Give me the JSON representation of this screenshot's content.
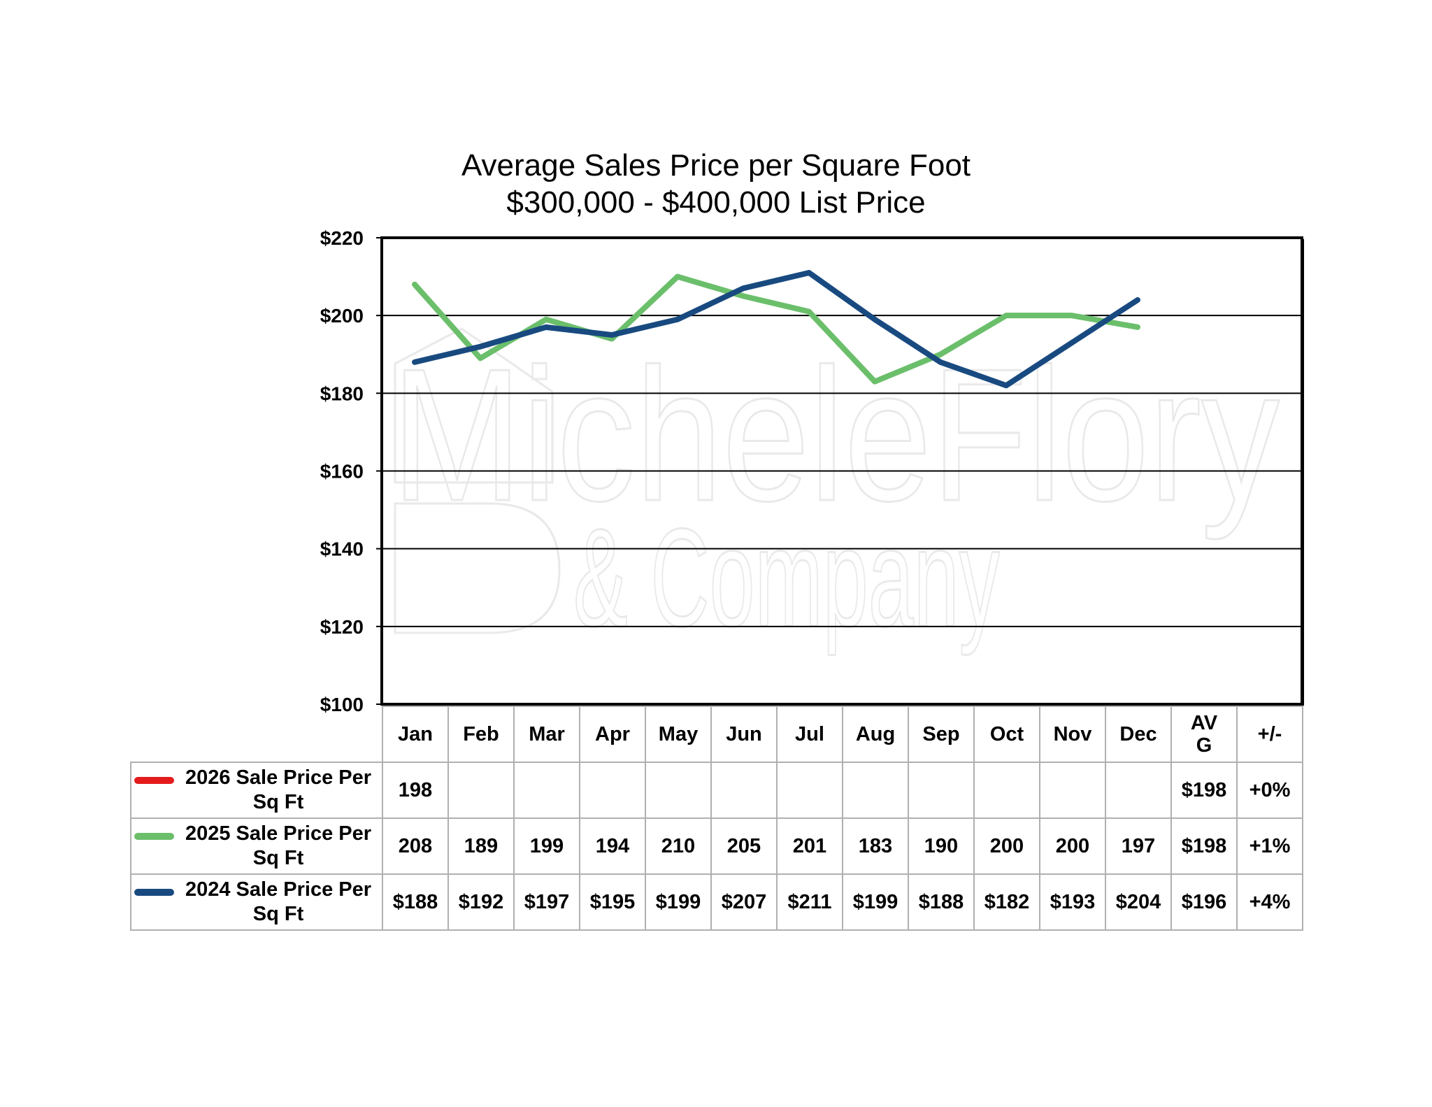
{
  "chart_data": {
    "type": "line",
    "title": "Average Sales Price per Square Foot",
    "subtitle": "$300,000 - $400,000 List Price",
    "categories": [
      "Jan",
      "Feb",
      "Mar",
      "Apr",
      "May",
      "Jun",
      "Jul",
      "Aug",
      "Sep",
      "Oct",
      "Nov",
      "Dec"
    ],
    "ylim": [
      100,
      220
    ],
    "yticks": [
      100,
      120,
      140,
      160,
      180,
      200,
      220
    ],
    "ytick_labels": [
      "$100",
      "$120",
      "$140",
      "$160",
      "$180",
      "$200",
      "$220"
    ],
    "grid": true,
    "legend": "data-table",
    "series": [
      {
        "name": "2026 Sale Price Per Sq Ft",
        "color": "#e41a1c",
        "values": [
          198,
          null,
          null,
          null,
          null,
          null,
          null,
          null,
          null,
          null,
          null,
          null
        ],
        "cells": [
          "198",
          "",
          "",
          "",
          "",
          "",
          "",
          "",
          "",
          "",
          "",
          ""
        ],
        "avg": "$198",
        "change": "+0%"
      },
      {
        "name": "2025 Sale Price Per Sq Ft",
        "color": "#6bbf6b",
        "values": [
          208,
          189,
          199,
          194,
          210,
          205,
          201,
          183,
          190,
          200,
          200,
          197
        ],
        "cells": [
          "208",
          "189",
          "199",
          "194",
          "210",
          "205",
          "201",
          "183",
          "190",
          "200",
          "200",
          "197"
        ],
        "avg": "$198",
        "change": "+1%"
      },
      {
        "name": "2024 Sale Price Per Sq Ft",
        "color": "#184a80",
        "values": [
          188,
          192,
          197,
          195,
          199,
          207,
          211,
          199,
          188,
          182,
          193,
          204
        ],
        "cells": [
          "$188",
          "$192",
          "$197",
          "$195",
          "$199",
          "$207",
          "$211",
          "$199",
          "$188",
          "$182",
          "$193",
          "$204"
        ],
        "avg": "$196",
        "change": "+4%"
      }
    ],
    "table_headers": {
      "avg": "AV G",
      "change": "+/-"
    }
  },
  "watermark": {
    "text_line1": "MicheleFlory",
    "text_line2": "& Company"
  }
}
